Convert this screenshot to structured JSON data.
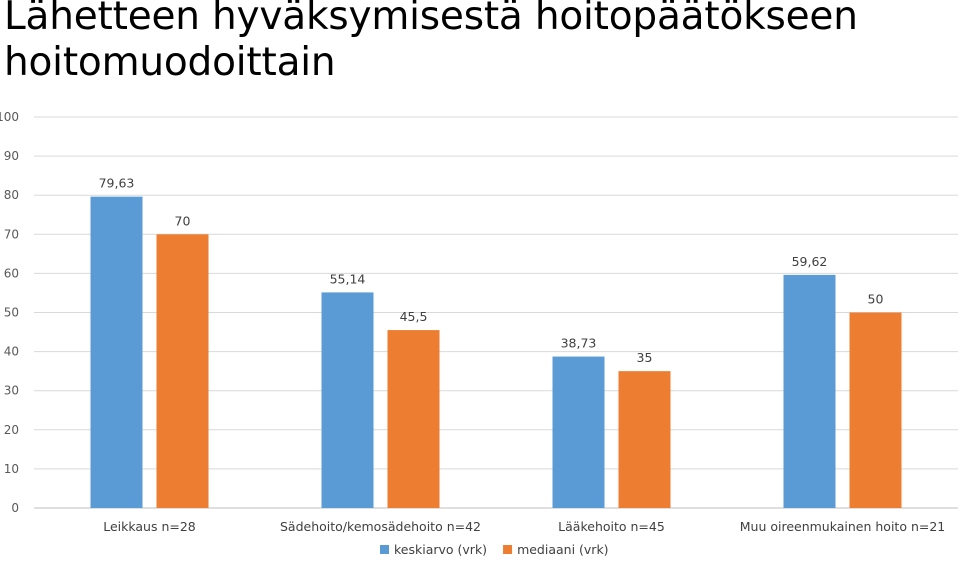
{
  "chart_data": {
    "type": "bar",
    "title": "Lähetteen hyväksymisestä hoitopäätökseen hoitomuodoittain",
    "categories": [
      "Leikkaus n=28",
      "Sädehoito/kemosädehoito n=42",
      "Lääkehoito n=45",
      "Muu oireenmukainen hoito n=21"
    ],
    "series": [
      {
        "name": "keskiarvo (vrk)",
        "values": [
          79.63,
          55.14,
          38.73,
          59.62
        ],
        "labels": [
          "79,63",
          "55,14",
          "38,73",
          "59,62"
        ],
        "color": "#5B9BD5"
      },
      {
        "name": "mediaani (vrk)",
        "values": [
          70,
          45.5,
          35,
          50
        ],
        "labels": [
          "70",
          "45,5",
          "35",
          "50"
        ],
        "color": "#ED7D31"
      }
    ],
    "yticks": [
      "0",
      "10",
      "20",
      "30",
      "40",
      "50",
      "60",
      "70",
      "80",
      "90",
      "100"
    ],
    "ylim": [
      0,
      100
    ],
    "grid": true,
    "legend": "bottom"
  }
}
